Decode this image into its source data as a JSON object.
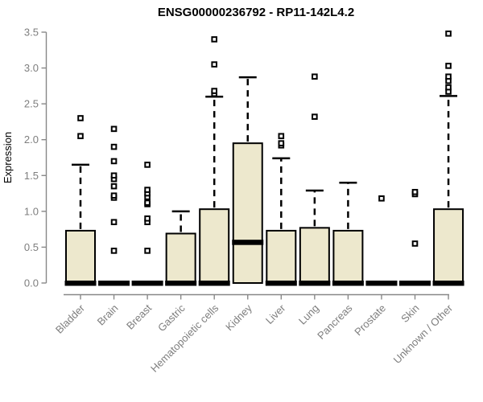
{
  "chart_data": {
    "type": "boxplot",
    "title": "ENSG00000236792 - RP11-142L4.2",
    "ylabel": "Expression",
    "xlabel": "",
    "ylim": [
      0,
      3.5
    ],
    "yticks": [
      0.0,
      0.5,
      1.0,
      1.5,
      2.0,
      2.5,
      3.0,
      3.5
    ],
    "ytick_labels": [
      "0.0",
      "0.5",
      "1.0",
      "1.5",
      "2.0",
      "2.5",
      "3.0",
      "3.5"
    ],
    "grid": false,
    "legend": false,
    "categories": [
      "Bladder",
      "Brain",
      "Breast",
      "Gastric",
      "Hematopoietic cells",
      "Kidney",
      "Liver",
      "Lung",
      "Pancreas",
      "Prostate",
      "Skin",
      "Unknown / Other"
    ],
    "series": [
      {
        "category": "Bladder",
        "q1": 0,
        "median": 0,
        "q3": 0.73,
        "whisker_low": 0,
        "whisker_high": 1.65,
        "outliers": [
          2.05,
          2.3
        ]
      },
      {
        "category": "Brain",
        "q1": 0,
        "median": 0,
        "q3": 0,
        "whisker_low": 0,
        "whisker_high": 0,
        "outliers": [
          0.45,
          0.85,
          1.19,
          1.22,
          1.35,
          1.45,
          1.5,
          1.7,
          1.9,
          2.15
        ]
      },
      {
        "category": "Breast",
        "q1": 0,
        "median": 0,
        "q3": 0,
        "whisker_low": 0,
        "whisker_high": 0,
        "outliers": [
          0.45,
          0.85,
          0.9,
          1.1,
          1.12,
          1.2,
          1.25,
          1.3,
          1.65
        ]
      },
      {
        "category": "Gastric",
        "q1": 0,
        "median": 0,
        "q3": 0.69,
        "whisker_low": 0,
        "whisker_high": 1.0,
        "outliers": []
      },
      {
        "category": "Hematopoietic cells",
        "q1": 0,
        "median": 0,
        "q3": 1.03,
        "whisker_low": 0,
        "whisker_high": 2.6,
        "outliers": [
          2.64,
          2.68,
          3.05,
          3.4
        ]
      },
      {
        "category": "Kidney",
        "q1": 0,
        "median": 0.57,
        "q3": 1.95,
        "whisker_low": 0,
        "whisker_high": 2.87,
        "outliers": []
      },
      {
        "category": "Liver",
        "q1": 0,
        "median": 0,
        "q3": 0.73,
        "whisker_low": 0,
        "whisker_high": 1.74,
        "outliers": [
          1.92,
          1.95,
          2.05
        ]
      },
      {
        "category": "Lung",
        "q1": 0,
        "median": 0,
        "q3": 0.77,
        "whisker_low": 0,
        "whisker_high": 1.29,
        "outliers": [
          2.32,
          2.88
        ]
      },
      {
        "category": "Pancreas",
        "q1": 0,
        "median": 0,
        "q3": 0.73,
        "whisker_low": 0,
        "whisker_high": 1.4,
        "outliers": []
      },
      {
        "category": "Prostate",
        "q1": 0,
        "median": 0,
        "q3": 0,
        "whisker_low": 0,
        "whisker_high": 0,
        "outliers": [
          1.18
        ]
      },
      {
        "category": "Skin",
        "q1": 0,
        "median": 0,
        "q3": 0,
        "whisker_low": 0,
        "whisker_high": 0,
        "outliers": [
          0.55,
          1.24,
          1.27
        ]
      },
      {
        "category": "Unknown / Other",
        "q1": 0,
        "median": 0,
        "q3": 1.03,
        "whisker_low": 0,
        "whisker_high": 2.61,
        "outliers": [
          2.67,
          2.73,
          2.82,
          2.88,
          3.03,
          3.48
        ]
      }
    ],
    "colors": {
      "box_fill": "#EDE8CD",
      "box_border": "#000000",
      "median": "#000000",
      "outlier_border": "#000000",
      "outlier_fill": "#ffffff",
      "axis_line": "#888888",
      "axis_text": "#7e7e7e",
      "title_text": "#000000",
      "background": "#ffffff"
    }
  }
}
